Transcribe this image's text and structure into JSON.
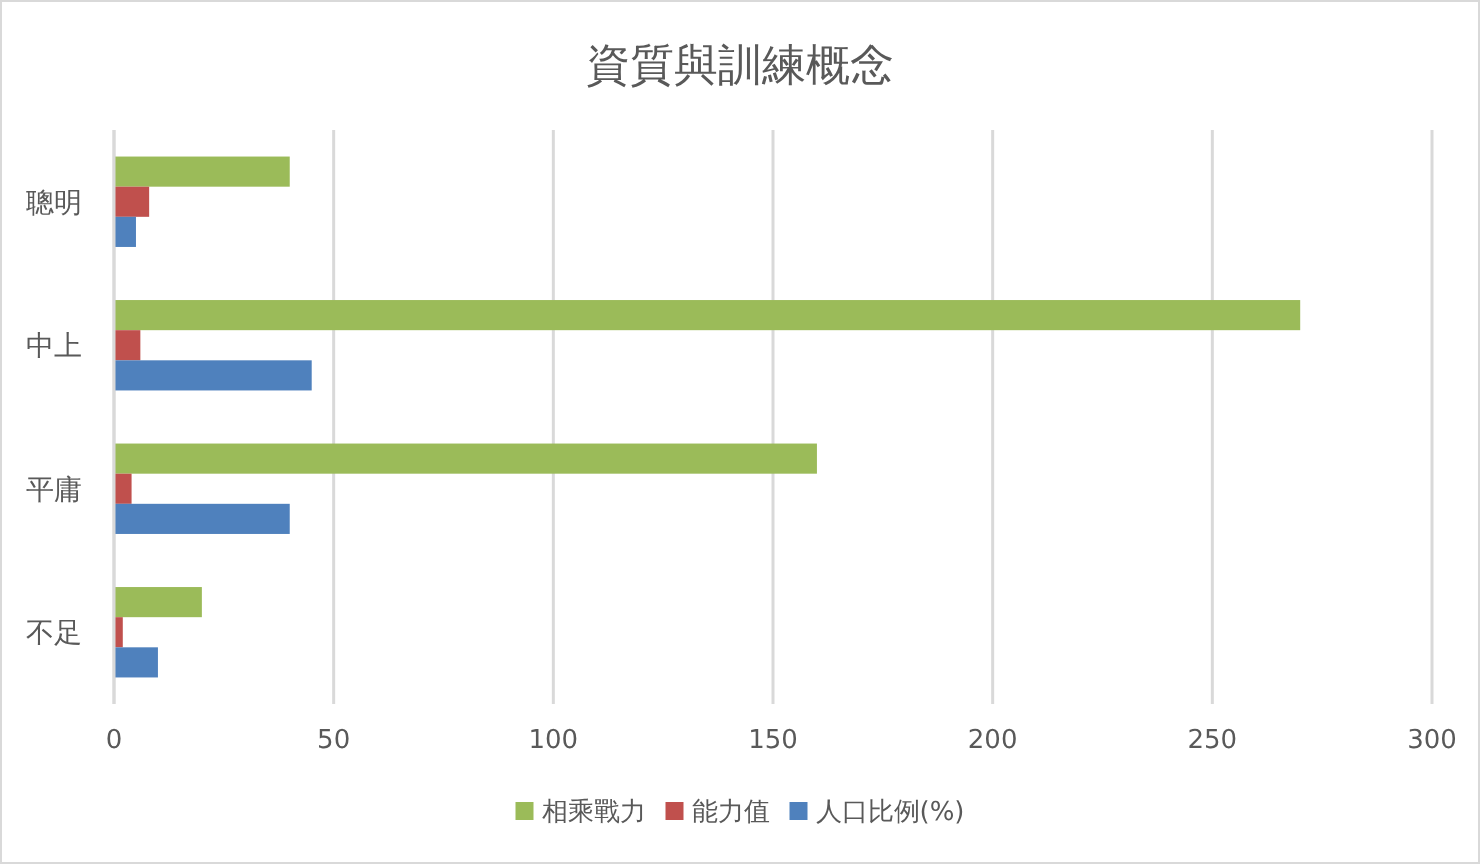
{
  "chart_data": {
    "type": "bar",
    "orientation": "horizontal",
    "title": "資質與訓練概念",
    "categories": [
      "聰明",
      "中上",
      "平庸",
      "不足"
    ],
    "series": [
      {
        "name": "相乘戰力",
        "color": "#9bbb59",
        "values": [
          40,
          270,
          160,
          20
        ]
      },
      {
        "name": "能力值",
        "color": "#c0504d",
        "values": [
          8,
          6,
          4,
          2
        ]
      },
      {
        "name": "人口比例(%)",
        "color": "#4f81bd",
        "values": [
          5,
          45,
          40,
          10
        ]
      }
    ],
    "xlim": [
      0,
      300
    ],
    "xticks": [
      0,
      50,
      100,
      150,
      200,
      250,
      300
    ],
    "grid": "x",
    "legend": "bottom"
  }
}
